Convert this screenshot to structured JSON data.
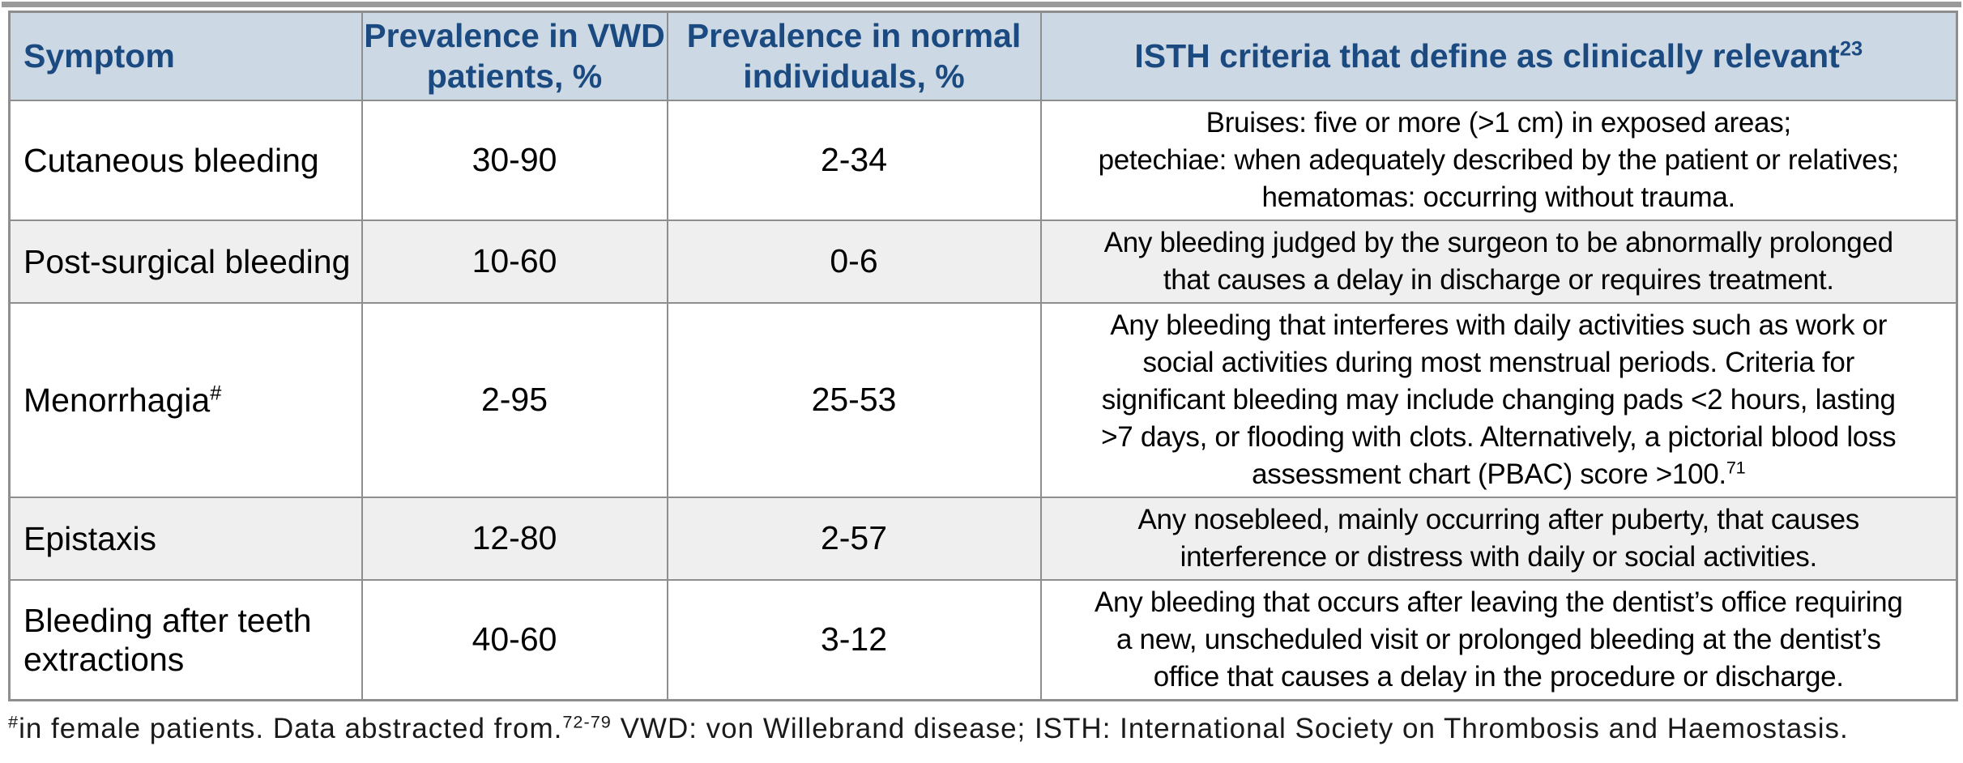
{
  "colors": {
    "header_bg": "#ccd8e4",
    "header_text": "#1b4a80",
    "row_alt_bg": "#efefef",
    "border": "#8e8e8e",
    "top_rule": "#9a9a9a",
    "body_text": "#000000",
    "footnote_text": "#1a1a1a"
  },
  "table": {
    "headers": [
      {
        "lines": [
          "Symptom"
        ],
        "sup": ""
      },
      {
        "lines": [
          "Prevalence in VWD",
          "patients, %"
        ],
        "sup": ""
      },
      {
        "lines": [
          "Prevalence in normal",
          "individuals, %"
        ],
        "sup": ""
      },
      {
        "lines": [
          "ISTH criteria that define as clinically relevant"
        ],
        "sup": "23"
      }
    ],
    "rows": [
      {
        "symptom": "Cutaneous bleeding",
        "symptom_sup": "",
        "prevalence_vwd": "30-90",
        "prevalence_normal": "2-34",
        "criteria_lines": [
          "Bruises: five or more (>1 cm) in exposed areas;",
          "petechiae:  when adequately described by the patient or relatives;",
          "hematomas: occurring without trauma."
        ],
        "criteria_sup": ""
      },
      {
        "symptom": "Post-surgical bleeding",
        "symptom_sup": "",
        "prevalence_vwd": "10-60",
        "prevalence_normal": "0-6",
        "criteria_lines": [
          "Any bleeding judged by the surgeon to be abnormally prolonged",
          "that causes a delay in discharge or requires treatment."
        ],
        "criteria_sup": ""
      },
      {
        "symptom": "Menorrhagia",
        "symptom_sup": "#",
        "prevalence_vwd": "2-95",
        "prevalence_normal": "25-53",
        "criteria_lines": [
          "Any bleeding that interferes with daily activities such as work or",
          "social activities during most menstrual periods. Criteria for",
          "significant bleeding may include changing pads <2 hours, lasting",
          ">7 days, or flooding with clots. Alternatively, a pictorial blood loss",
          "assessment chart (PBAC) score >100."
        ],
        "criteria_sup": "71"
      },
      {
        "symptom": "Epistaxis",
        "symptom_sup": "",
        "prevalence_vwd": "12-80",
        "prevalence_normal": "2-57",
        "criteria_lines": [
          "Any nosebleed, mainly occurring after puberty, that causes",
          "interference or distress with daily or social activities."
        ],
        "criteria_sup": ""
      },
      {
        "symptom": "Bleeding after teeth extractions",
        "symptom_sup": "",
        "prevalence_vwd": "40-60",
        "prevalence_normal": "3-12",
        "criteria_lines": [
          "Any bleeding that occurs after leaving the dentist’s office requiring",
          "a new, unscheduled visit or prolonged bleeding at the dentist’s",
          "office that causes a delay in the procedure or discharge."
        ],
        "criteria_sup": ""
      }
    ]
  },
  "footnote": {
    "lead_sup": "#",
    "part1": "in female patients. Data abstracted from.",
    "ref_sup": "72-79",
    "part2": " VWD: von Willebrand disease; ISTH: International Society on Thrombosis and Haemostasis."
  }
}
